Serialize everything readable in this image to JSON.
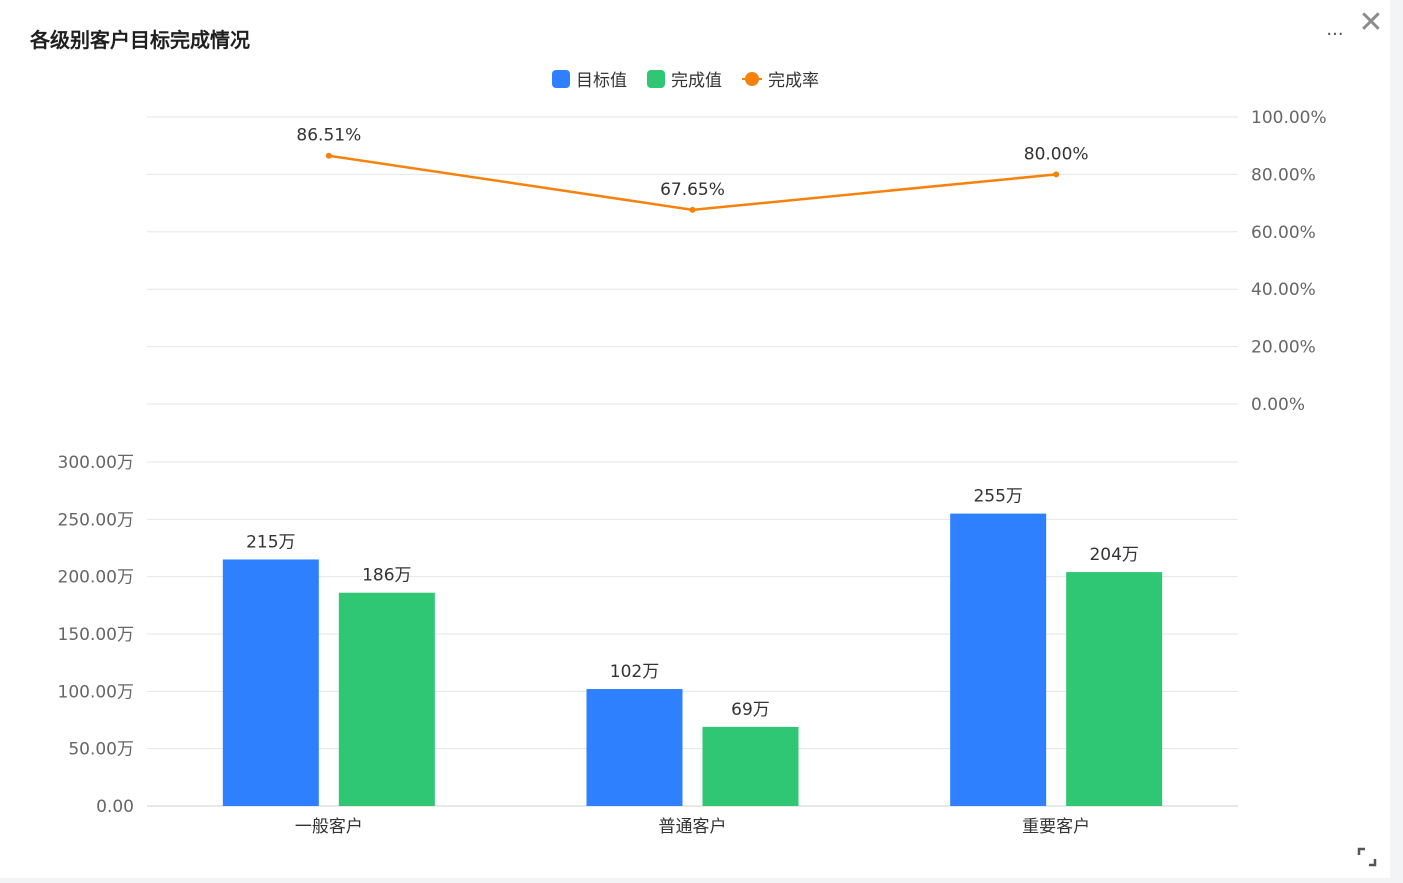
{
  "header": {
    "title": "各级别客户目标完成情况",
    "more_label": "···",
    "close_label": "✕"
  },
  "legend": [
    {
      "name": "目标值",
      "color": "#2f80ff",
      "kind": "bar"
    },
    {
      "name": "完成值",
      "color": "#2fc773",
      "kind": "bar"
    },
    {
      "name": "完成率",
      "color": "#f6820d",
      "kind": "line"
    }
  ],
  "chart_data": {
    "type": "bar",
    "title": "各级别客户目标完成情况",
    "categories": [
      "一般客户",
      "普通客户",
      "重要客户"
    ],
    "series": [
      {
        "name": "目标值",
        "type": "bar",
        "values": [
          215,
          102,
          255
        ],
        "labels": [
          "215万",
          "102万",
          "255万"
        ],
        "color": "#2f80ff"
      },
      {
        "name": "完成值",
        "type": "bar",
        "values": [
          186,
          69,
          204
        ],
        "labels": [
          "186万",
          "69万",
          "204万"
        ],
        "color": "#2fc773"
      },
      {
        "name": "完成率",
        "type": "line",
        "values": [
          86.51,
          67.65,
          80.0
        ],
        "labels": [
          "86.51%",
          "67.65%",
          "80.00%"
        ],
        "color": "#f6820d"
      }
    ],
    "bar_axis": {
      "ylim": [
        0,
        300
      ],
      "ticks": [
        0,
        50,
        100,
        150,
        200,
        250,
        300
      ],
      "tick_labels": [
        "0.00",
        "50.00万",
        "100.00万",
        "150.00万",
        "200.00万",
        "250.00万",
        "300.00万"
      ]
    },
    "rate_axis": {
      "ylim": [
        0,
        100
      ],
      "ticks": [
        0,
        20,
        40,
        60,
        80,
        100
      ],
      "tick_labels": [
        "0.00%",
        "20.00%",
        "40.00%",
        "60.00%",
        "80.00%",
        "100.00%"
      ]
    },
    "grid": true,
    "legend_position": "top-center"
  }
}
